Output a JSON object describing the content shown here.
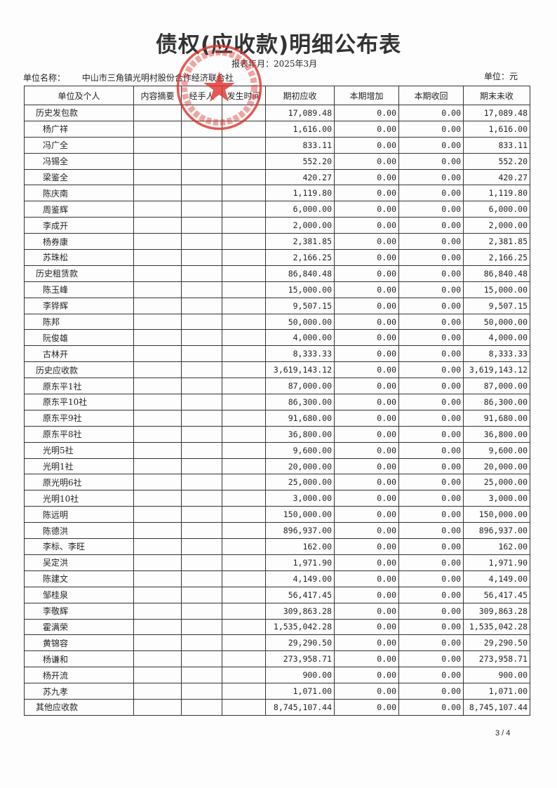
{
  "title": "债权(应收款)明细公布表",
  "period": "报表年月：2025年3月",
  "unit_name_label": "单位名称：",
  "unit_name": "中山市三角镇光明村股份合作经济联合社",
  "currency_unit": "单位：元",
  "stamp_text": "中山市三角镇光明村股份合作经济联合社",
  "stamp_color": "#e0302a",
  "columns": [
    "单位及个人",
    "内容摘要",
    "经手人",
    "发生时间",
    "期初应收",
    "本期增加",
    "本期收回",
    "期末未收"
  ],
  "rows": [
    {
      "name": "历史发包款",
      "cat": true,
      "opening": "17,089.48",
      "added": "0.00",
      "recovered": "0.00",
      "closing": "17,089.48"
    },
    {
      "name": "杨广祥",
      "opening": "1,616.00",
      "added": "0.00",
      "recovered": "0.00",
      "closing": "1,616.00"
    },
    {
      "name": "冯广全",
      "opening": "833.11",
      "added": "0.00",
      "recovered": "0.00",
      "closing": "833.11"
    },
    {
      "name": "冯锡全",
      "opening": "552.20",
      "added": "0.00",
      "recovered": "0.00",
      "closing": "552.20"
    },
    {
      "name": "梁鉴全",
      "opening": "420.27",
      "added": "0.00",
      "recovered": "0.00",
      "closing": "420.27"
    },
    {
      "name": "陈庆南",
      "opening": "1,119.80",
      "added": "0.00",
      "recovered": "0.00",
      "closing": "1,119.80"
    },
    {
      "name": "周鉴辉",
      "opening": "6,000.00",
      "added": "0.00",
      "recovered": "0.00",
      "closing": "6,000.00"
    },
    {
      "name": "李成开",
      "opening": "2,000.00",
      "added": "0.00",
      "recovered": "0.00",
      "closing": "2,000.00"
    },
    {
      "name": "杨券康",
      "opening": "2,381.85",
      "added": "0.00",
      "recovered": "0.00",
      "closing": "2,381.85"
    },
    {
      "name": "苏珠松",
      "opening": "2,166.25",
      "added": "0.00",
      "recovered": "0.00",
      "closing": "2,166.25"
    },
    {
      "name": "历史租赁款",
      "cat": true,
      "opening": "86,840.48",
      "added": "0.00",
      "recovered": "0.00",
      "closing": "86,840.48"
    },
    {
      "name": "陈玉峰",
      "opening": "15,000.00",
      "added": "0.00",
      "recovered": "0.00",
      "closing": "15,000.00"
    },
    {
      "name": "李铧辉",
      "opening": "9,507.15",
      "added": "0.00",
      "recovered": "0.00",
      "closing": "9,507.15"
    },
    {
      "name": "陈邦",
      "opening": "50,000.00",
      "added": "0.00",
      "recovered": "0.00",
      "closing": "50,000.00"
    },
    {
      "name": "阮俊雄",
      "opening": "4,000.00",
      "added": "0.00",
      "recovered": "0.00",
      "closing": "4,000.00"
    },
    {
      "name": "古林开",
      "opening": "8,333.33",
      "added": "0.00",
      "recovered": "0.00",
      "closing": "8,333.33"
    },
    {
      "name": "历史应收款",
      "cat": true,
      "opening": "3,619,143.12",
      "added": "0.00",
      "recovered": "0.00",
      "closing": "3,619,143.12"
    },
    {
      "name": "原东平1社",
      "opening": "87,000.00",
      "added": "0.00",
      "recovered": "0.00",
      "closing": "87,000.00"
    },
    {
      "name": "原东平10社",
      "opening": "86,300.00",
      "added": "0.00",
      "recovered": "0.00",
      "closing": "86,300.00"
    },
    {
      "name": "原东平9社",
      "opening": "91,680.00",
      "added": "0.00",
      "recovered": "0.00",
      "closing": "91,680.00"
    },
    {
      "name": "原东平8社",
      "opening": "36,800.00",
      "added": "0.00",
      "recovered": "0.00",
      "closing": "36,800.00"
    },
    {
      "name": "光明5社",
      "opening": "9,600.00",
      "added": "0.00",
      "recovered": "0.00",
      "closing": "9,600.00"
    },
    {
      "name": "光明1社",
      "opening": "20,000.00",
      "added": "0.00",
      "recovered": "0.00",
      "closing": "20,000.00"
    },
    {
      "name": "原光明6社",
      "opening": "25,000.00",
      "added": "0.00",
      "recovered": "0.00",
      "closing": "25,000.00"
    },
    {
      "name": "光明10社",
      "opening": "3,000.00",
      "added": "0.00",
      "recovered": "0.00",
      "closing": "3,000.00"
    },
    {
      "name": "陈远明",
      "opening": "150,000.00",
      "added": "0.00",
      "recovered": "0.00",
      "closing": "150,000.00"
    },
    {
      "name": "陈德洪",
      "opening": "896,937.00",
      "added": "0.00",
      "recovered": "0.00",
      "closing": "896,937.00"
    },
    {
      "name": "李标、李旺",
      "opening": "162.00",
      "added": "0.00",
      "recovered": "0.00",
      "closing": "162.00"
    },
    {
      "name": "吴定洪",
      "opening": "1,971.90",
      "added": "0.00",
      "recovered": "0.00",
      "closing": "1,971.90"
    },
    {
      "name": "陈建文",
      "opening": "4,149.00",
      "added": "0.00",
      "recovered": "0.00",
      "closing": "4,149.00"
    },
    {
      "name": "邹桂泉",
      "opening": "56,417.45",
      "added": "0.00",
      "recovered": "0.00",
      "closing": "56,417.45"
    },
    {
      "name": "李敬辉",
      "opening": "309,863.28",
      "added": "0.00",
      "recovered": "0.00",
      "closing": "309,863.28"
    },
    {
      "name": "霍满荣",
      "opening": "1,535,042.28",
      "added": "0.00",
      "recovered": "0.00",
      "closing": "1,535,042.28"
    },
    {
      "name": "黄锦容",
      "opening": "29,290.50",
      "added": "0.00",
      "recovered": "0.00",
      "closing": "29,290.50"
    },
    {
      "name": "杨谦和",
      "opening": "273,958.71",
      "added": "0.00",
      "recovered": "0.00",
      "closing": "273,958.71"
    },
    {
      "name": "杨开流",
      "opening": "900.00",
      "added": "0.00",
      "recovered": "0.00",
      "closing": "900.00"
    },
    {
      "name": "苏九孝",
      "opening": "1,071.00",
      "added": "0.00",
      "recovered": "0.00",
      "closing": "1,071.00"
    },
    {
      "name": "其他应收款",
      "cat": true,
      "opening": "8,745,107.44",
      "added": "0.00",
      "recovered": "0.00",
      "closing": "8,745,107.44"
    }
  ],
  "page_number": "3 / 4"
}
